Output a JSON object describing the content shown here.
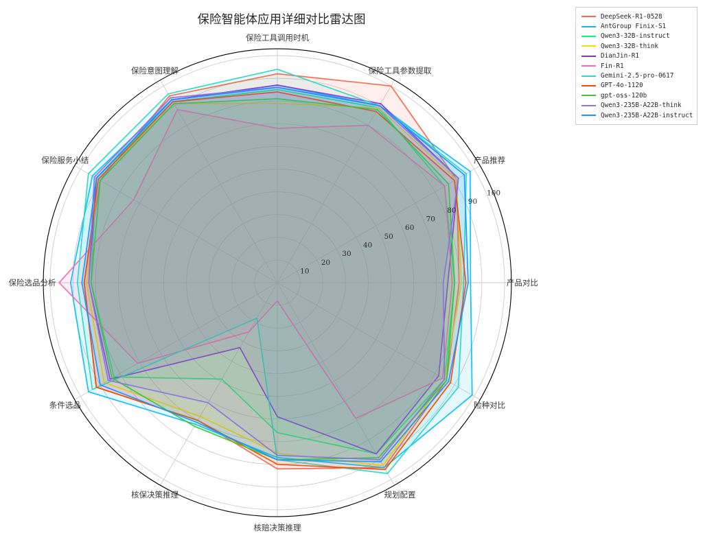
{
  "page": {
    "title_label": "保险智能体应用详细对比雷达图"
  },
  "chart_data": {
    "type": "radar",
    "title": "保险智能体应用详细对比雷达图",
    "categories": [
      "保险工具调用时机",
      "保险工具参数提取",
      "产品推荐",
      "产品对比",
      "险种对比",
      "规划配置",
      "核赔决策推理",
      "核保决策推理",
      "条件选品",
      "保险选品分析",
      "保险服务小结",
      "保险意图理解"
    ],
    "radial_ticks": [
      10,
      20,
      30,
      40,
      50,
      60,
      70,
      80,
      90,
      100
    ],
    "radial_axis_max": 103,
    "tick_label_angle_deg": 22.5,
    "grid": "on",
    "legend_position": "upper-right-outside",
    "series": [
      {
        "name": "DeepSeek-R1-0528",
        "color": "#FF6347",
        "values": [
          92,
          100,
          91,
          80,
          86,
          94,
          82,
          70,
          92,
          85,
          90,
          95
        ]
      },
      {
        "name": "AntGroup Finix-S1",
        "color": "#00BFFF",
        "values": [
          87,
          90,
          98,
          85,
          99,
          94,
          77,
          72,
          96,
          91,
          94,
          93
        ]
      },
      {
        "name": "Qwen3-32B-instruct",
        "color": "#00FA7A",
        "values": [
          85,
          89,
          85,
          78,
          85,
          87,
          66,
          49,
          83,
          82,
          92,
          92
        ]
      },
      {
        "name": "Qwen3-32B-think",
        "color": "#FFD700",
        "values": [
          79,
          89,
          91,
          81,
          85,
          93,
          75,
          68,
          88,
          84,
          91,
          91
        ]
      },
      {
        "name": "DianJin-R1",
        "color": "#8A2BE2",
        "values": [
          87,
          91,
          92,
          75,
          82,
          87,
          59,
          33,
          85,
          83,
          92,
          93
        ]
      },
      {
        "name": "Fin-R1",
        "color": "#FF69B4",
        "values": [
          68,
          80,
          85,
          77,
          84,
          69,
          8,
          25,
          71,
          96,
          73,
          88
        ]
      },
      {
        "name": "Gemini-2.5-pro-0617",
        "color": "#2FD6C8",
        "values": [
          94,
          90,
          96,
          82,
          92,
          97,
          78,
          18,
          94,
          88,
          96,
          96
        ]
      },
      {
        "name": "GPT-4o-1120",
        "color": "#FF4500",
        "values": [
          84,
          87,
          90,
          83,
          88,
          95,
          80,
          70,
          92,
          85,
          91,
          92
        ]
      },
      {
        "name": "gpt-oss-120b",
        "color": "#32CD32",
        "values": [
          81,
          88,
          87,
          78,
          86,
          89,
          78,
          73,
          84,
          82,
          90,
          91
        ]
      },
      {
        "name": "Qwen3-235B-A22B-think",
        "color": "#9370DB",
        "values": [
          86,
          90,
          92,
          73,
          85,
          90,
          76,
          61,
          86,
          83,
          93,
          94
        ]
      },
      {
        "name": "Qwen3-235B-A22B-instruct",
        "color": "#1E90FF",
        "values": [
          86,
          90,
          95,
          84,
          87,
          91,
          78,
          71,
          90,
          86,
          92,
          93
        ]
      }
    ]
  }
}
